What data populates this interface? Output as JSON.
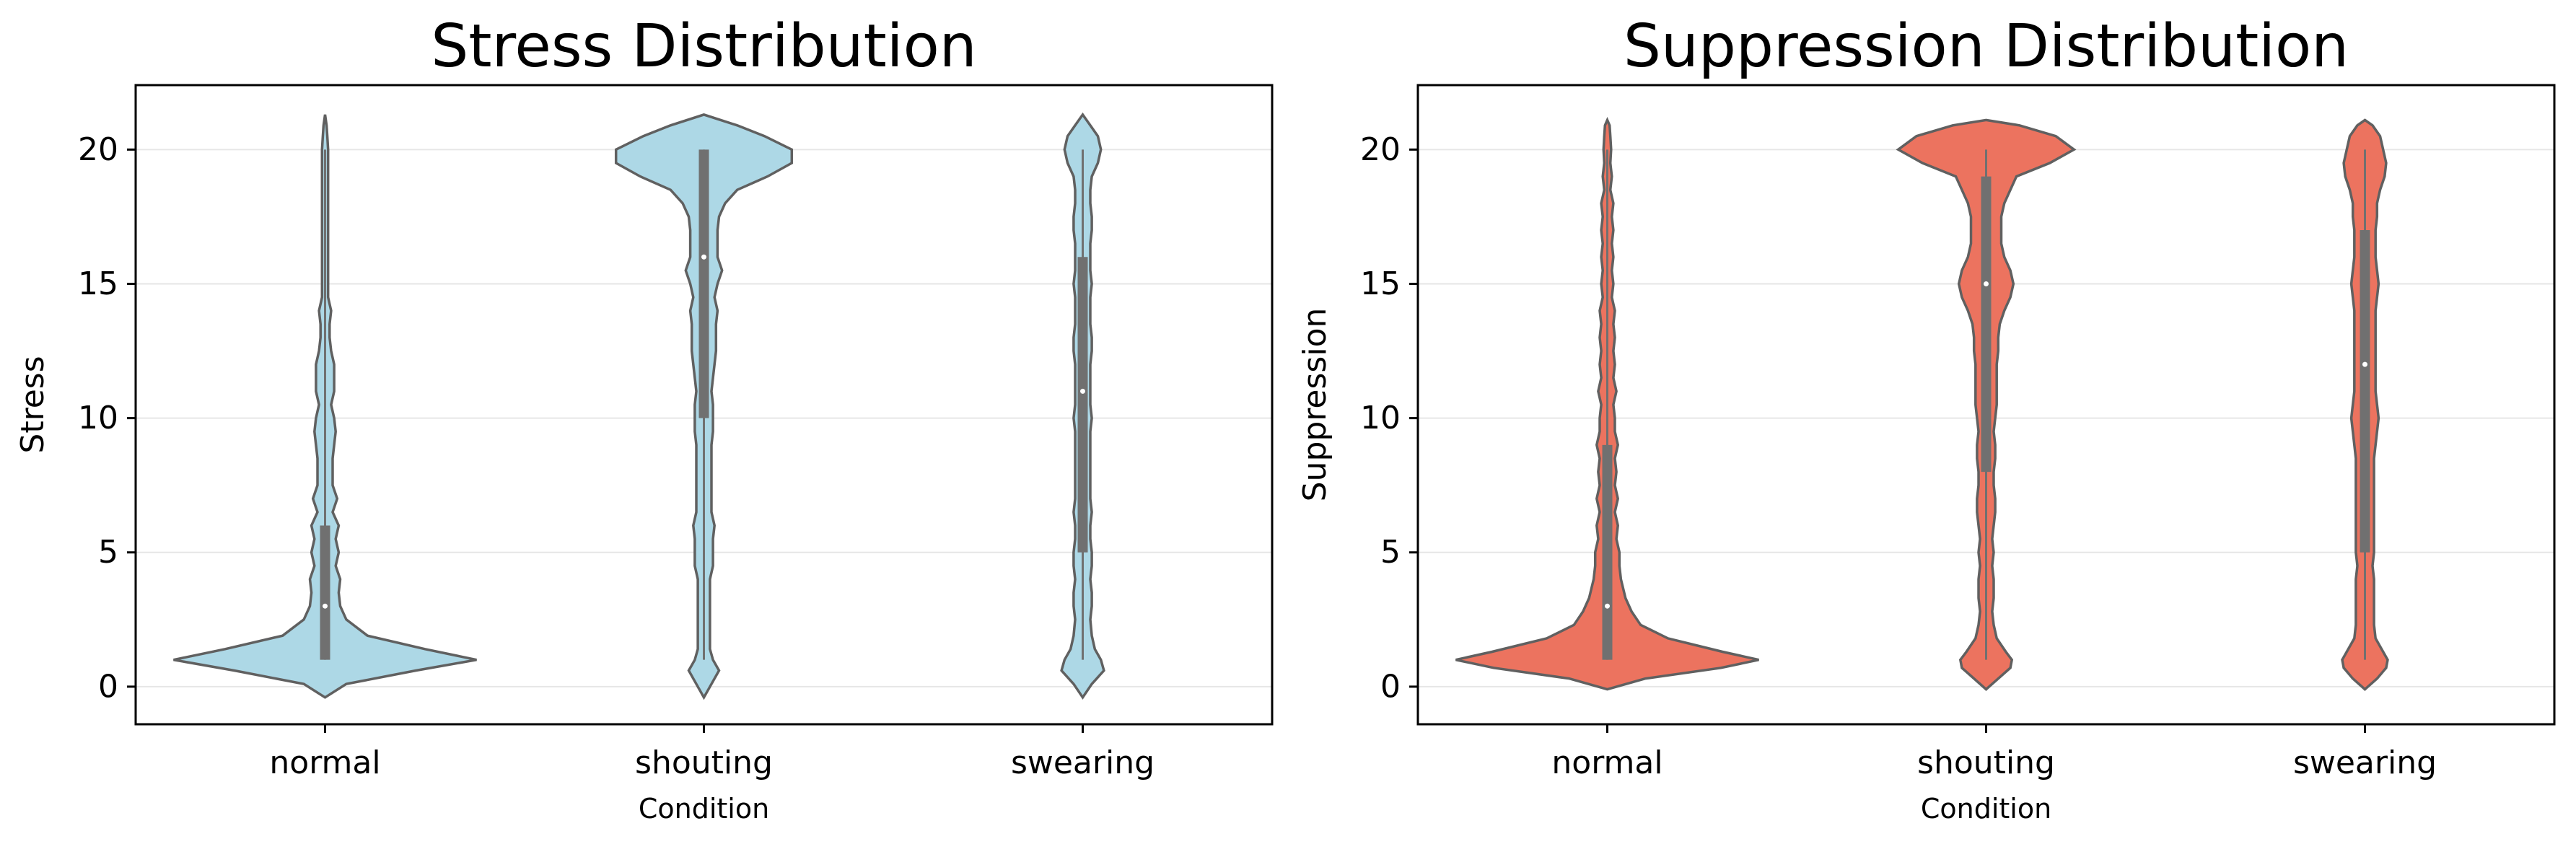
{
  "chart_data": [
    {
      "type": "violin",
      "title": "Stress Distribution",
      "xlabel": "Condition",
      "ylabel": "Stress",
      "categories": [
        "normal",
        "shouting",
        "swearing"
      ],
      "yticks": [
        0,
        5,
        10,
        15,
        20
      ],
      "ylim": [
        -1.4,
        22.4
      ],
      "grid": "horizontal",
      "fill_color": "#add8e6",
      "summary": [
        {
          "category": "normal",
          "min": 1,
          "q1": 1,
          "median": 3,
          "q3": 6,
          "max": 20
        },
        {
          "category": "shouting",
          "min": 1,
          "q1": 10,
          "median": 16,
          "q3": 20,
          "max": 20
        },
        {
          "category": "swearing",
          "min": 1,
          "q1": 5,
          "median": 11,
          "q3": 16,
          "max": 20
        }
      ],
      "density_y": [
        -0.4,
        0.1,
        0.6,
        1.0,
        1.4,
        1.9,
        2.5,
        3.0,
        3.5,
        4.0,
        4.5,
        5.0,
        5.5,
        6.0,
        6.5,
        7.0,
        7.5,
        8.0,
        8.5,
        9.0,
        9.5,
        10.0,
        10.5,
        11.0,
        11.5,
        12.0,
        12.5,
        13.0,
        13.5,
        14.0,
        14.5,
        15.0,
        15.5,
        16.0,
        16.5,
        17.0,
        17.5,
        18.0,
        18.5,
        19.0,
        19.5,
        20.0,
        20.5,
        20.9,
        21.3
      ],
      "density": [
        [
          0.0,
          0.14,
          0.6,
          1.0,
          0.66,
          0.28,
          0.14,
          0.1,
          0.09,
          0.1,
          0.07,
          0.09,
          0.07,
          0.09,
          0.05,
          0.08,
          0.05,
          0.05,
          0.05,
          0.06,
          0.07,
          0.06,
          0.04,
          0.06,
          0.06,
          0.06,
          0.04,
          0.03,
          0.03,
          0.04,
          0.02,
          0.02,
          0.02,
          0.02,
          0.02,
          0.02,
          0.02,
          0.02,
          0.02,
          0.02,
          0.02,
          0.02,
          0.015,
          0.01,
          0.0
        ],
        [
          0.0,
          0.05,
          0.1,
          0.06,
          0.04,
          0.04,
          0.04,
          0.04,
          0.04,
          0.04,
          0.06,
          0.06,
          0.06,
          0.07,
          0.05,
          0.05,
          0.05,
          0.05,
          0.05,
          0.05,
          0.06,
          0.06,
          0.06,
          0.05,
          0.06,
          0.07,
          0.08,
          0.08,
          0.08,
          0.09,
          0.07,
          0.09,
          0.12,
          0.09,
          0.09,
          0.09,
          0.1,
          0.14,
          0.22,
          0.42,
          0.58,
          0.58,
          0.4,
          0.22,
          0.0
        ],
        [
          0.0,
          0.06,
          0.14,
          0.12,
          0.08,
          0.06,
          0.05,
          0.06,
          0.06,
          0.05,
          0.06,
          0.06,
          0.05,
          0.05,
          0.06,
          0.05,
          0.05,
          0.05,
          0.05,
          0.05,
          0.05,
          0.06,
          0.05,
          0.05,
          0.05,
          0.05,
          0.06,
          0.06,
          0.05,
          0.05,
          0.05,
          0.06,
          0.05,
          0.05,
          0.05,
          0.06,
          0.06,
          0.05,
          0.05,
          0.06,
          0.1,
          0.12,
          0.1,
          0.05,
          0.0
        ]
      ]
    },
    {
      "type": "violin",
      "title": "Suppression Distribution",
      "xlabel": "Condition",
      "ylabel": "Suppression",
      "categories": [
        "normal",
        "shouting",
        "swearing"
      ],
      "yticks": [
        0,
        5,
        10,
        15,
        20
      ],
      "ylim": [
        -1.4,
        22.4
      ],
      "grid": "horizontal",
      "fill_color": "#ec735f",
      "summary": [
        {
          "category": "normal",
          "min": 1,
          "q1": 1,
          "median": 3,
          "q3": 9,
          "max": 20
        },
        {
          "category": "shouting",
          "min": 1,
          "q1": 8,
          "median": 15,
          "q3": 19,
          "max": 20
        },
        {
          "category": "swearing",
          "min": 1,
          "q1": 5,
          "median": 12,
          "q3": 17,
          "max": 20
        }
      ],
      "density_y": [
        -0.1,
        0.3,
        0.7,
        1.0,
        1.3,
        1.8,
        2.3,
        2.8,
        3.3,
        4.0,
        4.5,
        5.0,
        5.5,
        6.0,
        6.5,
        7.0,
        7.5,
        8.0,
        8.5,
        9.0,
        9.5,
        10.0,
        10.5,
        11.0,
        11.5,
        12.0,
        12.5,
        13.0,
        13.5,
        14.0,
        14.5,
        15.0,
        15.5,
        16.0,
        16.5,
        17.0,
        17.5,
        18.0,
        18.5,
        19.0,
        19.5,
        20.0,
        20.5,
        20.9,
        21.1
      ],
      "density": [
        [
          0.0,
          0.25,
          0.75,
          1.0,
          0.76,
          0.4,
          0.22,
          0.16,
          0.12,
          0.09,
          0.08,
          0.08,
          0.06,
          0.07,
          0.05,
          0.07,
          0.05,
          0.06,
          0.05,
          0.07,
          0.05,
          0.05,
          0.04,
          0.06,
          0.04,
          0.05,
          0.04,
          0.05,
          0.04,
          0.05,
          0.03,
          0.04,
          0.03,
          0.04,
          0.03,
          0.04,
          0.03,
          0.04,
          0.02,
          0.03,
          0.02,
          0.025,
          0.02,
          0.015,
          0.0
        ],
        [
          0.0,
          0.08,
          0.16,
          0.17,
          0.13,
          0.07,
          0.05,
          0.04,
          0.05,
          0.05,
          0.04,
          0.05,
          0.04,
          0.05,
          0.06,
          0.06,
          0.05,
          0.05,
          0.06,
          0.06,
          0.05,
          0.06,
          0.07,
          0.07,
          0.07,
          0.07,
          0.08,
          0.08,
          0.09,
          0.12,
          0.16,
          0.18,
          0.16,
          0.12,
          0.1,
          0.1,
          0.1,
          0.12,
          0.16,
          0.2,
          0.42,
          0.58,
          0.46,
          0.22,
          0.0
        ],
        [
          0.0,
          0.08,
          0.14,
          0.15,
          0.12,
          0.07,
          0.06,
          0.06,
          0.06,
          0.06,
          0.05,
          0.06,
          0.06,
          0.06,
          0.06,
          0.06,
          0.06,
          0.06,
          0.06,
          0.07,
          0.08,
          0.09,
          0.08,
          0.07,
          0.07,
          0.07,
          0.07,
          0.07,
          0.07,
          0.07,
          0.08,
          0.09,
          0.08,
          0.07,
          0.07,
          0.07,
          0.08,
          0.08,
          0.1,
          0.13,
          0.14,
          0.12,
          0.1,
          0.05,
          0.0
        ]
      ]
    }
  ]
}
